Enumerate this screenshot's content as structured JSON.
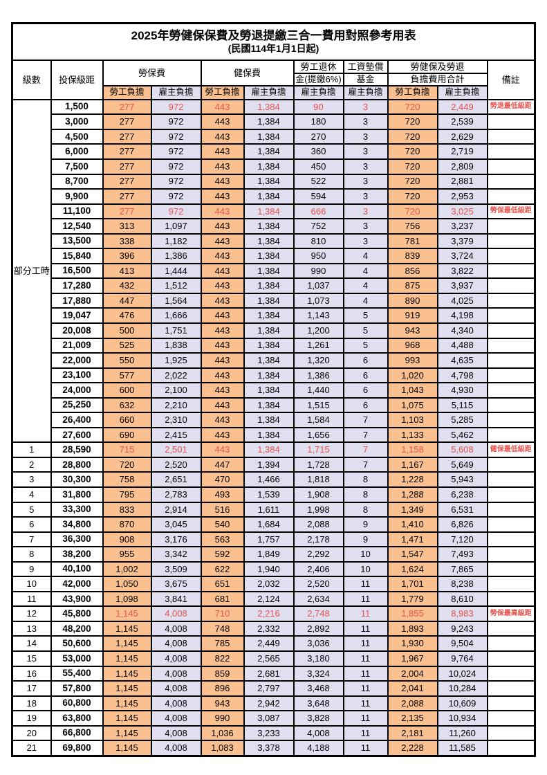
{
  "title": "2025年勞健保保費及勞退提繳三合一費用對照參考用表",
  "subtitle": "(民國114年1月1日起)",
  "colors": {
    "employee_col_bg": "#FAC08F",
    "employer_col_bg": "#E0DFF0",
    "highlight_text": "#E8534E",
    "border": "#000000"
  },
  "header": {
    "level": "級數",
    "bracket": "投保級距",
    "labor_insurance": "勞保費",
    "health_insurance": "健保費",
    "pension_line1": "勞工退休",
    "pension_line2": "金(提繳6%)",
    "wage_fund_line1": "工資墊償",
    "wage_fund_line2": "基金",
    "total_line1": "勞健保及勞退",
    "total_line2": "負擔費用合計",
    "remark": "備註",
    "employee_share": "勞工負擔",
    "employer_share": "雇主負擔"
  },
  "table": {
    "part_time_label": "部分工時",
    "part_time_span": 23,
    "rows": [
      {
        "level": null,
        "bracket": "1,500",
        "cells": [
          "277",
          "972",
          "443",
          "1,384",
          "90",
          "3",
          "720",
          "2,449"
        ],
        "remark": "勞退最低級距",
        "red": true
      },
      {
        "level": null,
        "bracket": "3,000",
        "cells": [
          "277",
          "972",
          "443",
          "1,384",
          "180",
          "3",
          "720",
          "2,539"
        ],
        "remark": "",
        "red": false
      },
      {
        "level": null,
        "bracket": "4,500",
        "cells": [
          "277",
          "972",
          "443",
          "1,384",
          "270",
          "3",
          "720",
          "2,629"
        ],
        "remark": "",
        "red": false
      },
      {
        "level": null,
        "bracket": "6,000",
        "cells": [
          "277",
          "972",
          "443",
          "1,384",
          "360",
          "3",
          "720",
          "2,719"
        ],
        "remark": "",
        "red": false
      },
      {
        "level": null,
        "bracket": "7,500",
        "cells": [
          "277",
          "972",
          "443",
          "1,384",
          "450",
          "3",
          "720",
          "2,809"
        ],
        "remark": "",
        "red": false
      },
      {
        "level": null,
        "bracket": "8,700",
        "cells": [
          "277",
          "972",
          "443",
          "1,384",
          "522",
          "3",
          "720",
          "2,881"
        ],
        "remark": "",
        "red": false
      },
      {
        "level": null,
        "bracket": "9,900",
        "cells": [
          "277",
          "972",
          "443",
          "1,384",
          "594",
          "3",
          "720",
          "2,953"
        ],
        "remark": "",
        "red": false
      },
      {
        "level": null,
        "bracket": "11,100",
        "cells": [
          "277",
          "972",
          "443",
          "1,384",
          "666",
          "3",
          "720",
          "3,025"
        ],
        "remark": "勞保最低級距",
        "red": true
      },
      {
        "level": null,
        "bracket": "12,540",
        "cells": [
          "313",
          "1,097",
          "443",
          "1,384",
          "752",
          "3",
          "756",
          "3,237"
        ],
        "remark": "",
        "red": false
      },
      {
        "level": null,
        "bracket": "13,500",
        "cells": [
          "338",
          "1,182",
          "443",
          "1,384",
          "810",
          "3",
          "781",
          "3,379"
        ],
        "remark": "",
        "red": false
      },
      {
        "level": null,
        "bracket": "15,840",
        "cells": [
          "396",
          "1,386",
          "443",
          "1,384",
          "950",
          "4",
          "839",
          "3,724"
        ],
        "remark": "",
        "red": false
      },
      {
        "level": null,
        "bracket": "16,500",
        "cells": [
          "413",
          "1,444",
          "443",
          "1,384",
          "990",
          "4",
          "856",
          "3,822"
        ],
        "remark": "",
        "red": false
      },
      {
        "level": null,
        "bracket": "17,280",
        "cells": [
          "432",
          "1,512",
          "443",
          "1,384",
          "1,037",
          "4",
          "875",
          "3,937"
        ],
        "remark": "",
        "red": false
      },
      {
        "level": null,
        "bracket": "17,880",
        "cells": [
          "447",
          "1,564",
          "443",
          "1,384",
          "1,073",
          "4",
          "890",
          "4,025"
        ],
        "remark": "",
        "red": false
      },
      {
        "level": null,
        "bracket": "19,047",
        "cells": [
          "476",
          "1,666",
          "443",
          "1,384",
          "1,143",
          "5",
          "919",
          "4,198"
        ],
        "remark": "",
        "red": false
      },
      {
        "level": null,
        "bracket": "20,008",
        "cells": [
          "500",
          "1,751",
          "443",
          "1,384",
          "1,200",
          "5",
          "943",
          "4,340"
        ],
        "remark": "",
        "red": false
      },
      {
        "level": null,
        "bracket": "21,009",
        "cells": [
          "525",
          "1,838",
          "443",
          "1,384",
          "1,261",
          "5",
          "968",
          "4,488"
        ],
        "remark": "",
        "red": false
      },
      {
        "level": null,
        "bracket": "22,000",
        "cells": [
          "550",
          "1,925",
          "443",
          "1,384",
          "1,320",
          "6",
          "993",
          "4,635"
        ],
        "remark": "",
        "red": false
      },
      {
        "level": null,
        "bracket": "23,100",
        "cells": [
          "577",
          "2,022",
          "443",
          "1,384",
          "1,386",
          "6",
          "1,020",
          "4,798"
        ],
        "remark": "",
        "red": false
      },
      {
        "level": null,
        "bracket": "24,000",
        "cells": [
          "600",
          "2,100",
          "443",
          "1,384",
          "1,440",
          "6",
          "1,043",
          "4,930"
        ],
        "remark": "",
        "red": false
      },
      {
        "level": null,
        "bracket": "25,250",
        "cells": [
          "632",
          "2,210",
          "443",
          "1,384",
          "1,515",
          "6",
          "1,075",
          "5,115"
        ],
        "remark": "",
        "red": false
      },
      {
        "level": null,
        "bracket": "26,400",
        "cells": [
          "660",
          "2,310",
          "443",
          "1,384",
          "1,584",
          "7",
          "1,103",
          "5,285"
        ],
        "remark": "",
        "red": false
      },
      {
        "level": null,
        "bracket": "27,600",
        "cells": [
          "690",
          "2,415",
          "443",
          "1,384",
          "1,656",
          "7",
          "1,133",
          "5,462"
        ],
        "remark": "",
        "red": false
      },
      {
        "level": "1",
        "bracket": "28,590",
        "cells": [
          "715",
          "2,501",
          "443",
          "1,384",
          "1,715",
          "7",
          "1,158",
          "5,608"
        ],
        "remark": "健保最低級距",
        "red": true
      },
      {
        "level": "2",
        "bracket": "28,800",
        "cells": [
          "720",
          "2,520",
          "447",
          "1,394",
          "1,728",
          "7",
          "1,167",
          "5,649"
        ],
        "remark": "",
        "red": false
      },
      {
        "level": "3",
        "bracket": "30,300",
        "cells": [
          "758",
          "2,651",
          "470",
          "1,466",
          "1,818",
          "8",
          "1,228",
          "5,943"
        ],
        "remark": "",
        "red": false
      },
      {
        "level": "4",
        "bracket": "31,800",
        "cells": [
          "795",
          "2,783",
          "493",
          "1,539",
          "1,908",
          "8",
          "1,288",
          "6,238"
        ],
        "remark": "",
        "red": false
      },
      {
        "level": "5",
        "bracket": "33,300",
        "cells": [
          "833",
          "2,914",
          "516",
          "1,611",
          "1,998",
          "8",
          "1,349",
          "6,531"
        ],
        "remark": "",
        "red": false
      },
      {
        "level": "6",
        "bracket": "34,800",
        "cells": [
          "870",
          "3,045",
          "540",
          "1,684",
          "2,088",
          "9",
          "1,410",
          "6,826"
        ],
        "remark": "",
        "red": false
      },
      {
        "level": "7",
        "bracket": "36,300",
        "cells": [
          "908",
          "3,176",
          "563",
          "1,757",
          "2,178",
          "9",
          "1,471",
          "7,120"
        ],
        "remark": "",
        "red": false
      },
      {
        "level": "8",
        "bracket": "38,200",
        "cells": [
          "955",
          "3,342",
          "592",
          "1,849",
          "2,292",
          "10",
          "1,547",
          "7,493"
        ],
        "remark": "",
        "red": false
      },
      {
        "level": "9",
        "bracket": "40,100",
        "cells": [
          "1,002",
          "3,509",
          "622",
          "1,940",
          "2,406",
          "10",
          "1,624",
          "7,865"
        ],
        "remark": "",
        "red": false
      },
      {
        "level": "10",
        "bracket": "42,000",
        "cells": [
          "1,050",
          "3,675",
          "651",
          "2,032",
          "2,520",
          "11",
          "1,701",
          "8,238"
        ],
        "remark": "",
        "red": false
      },
      {
        "level": "11",
        "bracket": "43,900",
        "cells": [
          "1,098",
          "3,841",
          "681",
          "2,124",
          "2,634",
          "11",
          "1,779",
          "8,610"
        ],
        "remark": "",
        "red": false
      },
      {
        "level": "12",
        "bracket": "45,800",
        "cells": [
          "1,145",
          "4,008",
          "710",
          "2,216",
          "2,748",
          "11",
          "1,855",
          "8,983"
        ],
        "remark": "勞保最高級距",
        "red": true
      },
      {
        "level": "13",
        "bracket": "48,200",
        "cells": [
          "1,145",
          "4,008",
          "748",
          "2,332",
          "2,892",
          "11",
          "1,893",
          "9,243"
        ],
        "remark": "",
        "red": false
      },
      {
        "level": "14",
        "bracket": "50,600",
        "cells": [
          "1,145",
          "4,008",
          "785",
          "2,449",
          "3,036",
          "11",
          "1,930",
          "9,504"
        ],
        "remark": "",
        "red": false
      },
      {
        "level": "15",
        "bracket": "53,000",
        "cells": [
          "1,145",
          "4,008",
          "822",
          "2,565",
          "3,180",
          "11",
          "1,967",
          "9,764"
        ],
        "remark": "",
        "red": false
      },
      {
        "level": "16",
        "bracket": "55,400",
        "cells": [
          "1,145",
          "4,008",
          "859",
          "2,681",
          "3,324",
          "11",
          "2,004",
          "10,024"
        ],
        "remark": "",
        "red": false
      },
      {
        "level": "17",
        "bracket": "57,800",
        "cells": [
          "1,145",
          "4,008",
          "896",
          "2,797",
          "3,468",
          "11",
          "2,041",
          "10,284"
        ],
        "remark": "",
        "red": false
      },
      {
        "level": "18",
        "bracket": "60,800",
        "cells": [
          "1,145",
          "4,008",
          "943",
          "2,942",
          "3,648",
          "11",
          "2,088",
          "10,609"
        ],
        "remark": "",
        "red": false
      },
      {
        "level": "19",
        "bracket": "63,800",
        "cells": [
          "1,145",
          "4,008",
          "990",
          "3,087",
          "3,828",
          "11",
          "2,135",
          "10,934"
        ],
        "remark": "",
        "red": false
      },
      {
        "level": "20",
        "bracket": "66,800",
        "cells": [
          "1,145",
          "4,008",
          "1,036",
          "3,233",
          "4,008",
          "11",
          "2,181",
          "11,260"
        ],
        "remark": "",
        "red": false
      },
      {
        "level": "21",
        "bracket": "69,800",
        "cells": [
          "1,145",
          "4,008",
          "1,083",
          "3,378",
          "4,188",
          "11",
          "2,228",
          "11,585"
        ],
        "remark": "",
        "red": false
      }
    ]
  }
}
